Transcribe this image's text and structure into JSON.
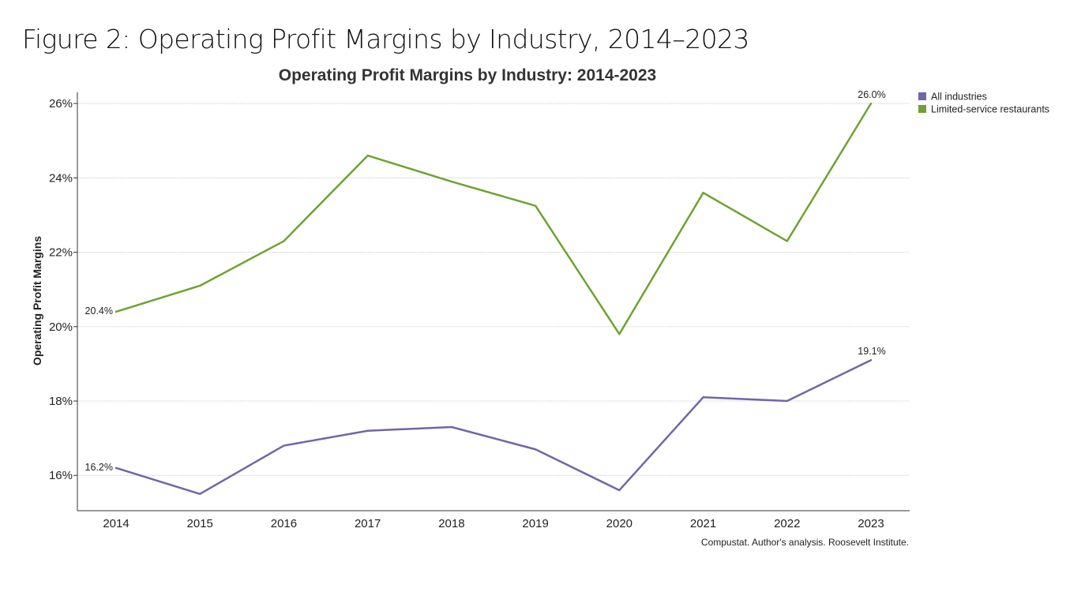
{
  "figure_title": "Figure 2: Operating Profit Margins by Industry, 2014–2023",
  "source_note": "Compustat. Author's analysis. Roosevelt Institute.",
  "chart_data": {
    "type": "line",
    "title": "Operating Profit Margins by Industry: 2014-2023",
    "xlabel": "",
    "ylabel": "Operating Profit Margins",
    "x": [
      "2014",
      "2015",
      "2016",
      "2017",
      "2018",
      "2019",
      "2020",
      "2021",
      "2022",
      "2023"
    ],
    "ylim": [
      15.05,
      26.3
    ],
    "yticks": [
      16,
      18,
      20,
      22,
      24,
      26
    ],
    "ytick_labels": [
      "16%",
      "18%",
      "20%",
      "22%",
      "24%",
      "26%"
    ],
    "grid": "horizontal dotted",
    "legend_position": "top-right",
    "series": [
      {
        "name": "All industries",
        "color": "#7464a8",
        "values": [
          16.2,
          15.5,
          16.8,
          17.2,
          17.3,
          16.7,
          15.6,
          18.1,
          18.0,
          19.1
        ],
        "labels": [
          {
            "index": 0,
            "text": "16.2%"
          },
          {
            "index": 9,
            "text": "19.1%"
          }
        ]
      },
      {
        "name": "Limited-service restaurants",
        "color": "#6fa232",
        "values": [
          20.4,
          21.1,
          22.3,
          24.6,
          23.9,
          23.25,
          19.8,
          23.6,
          22.3,
          26.0
        ],
        "labels": [
          {
            "index": 0,
            "text": "20.4%"
          },
          {
            "index": 9,
            "text": "26.0%"
          }
        ]
      }
    ]
  }
}
